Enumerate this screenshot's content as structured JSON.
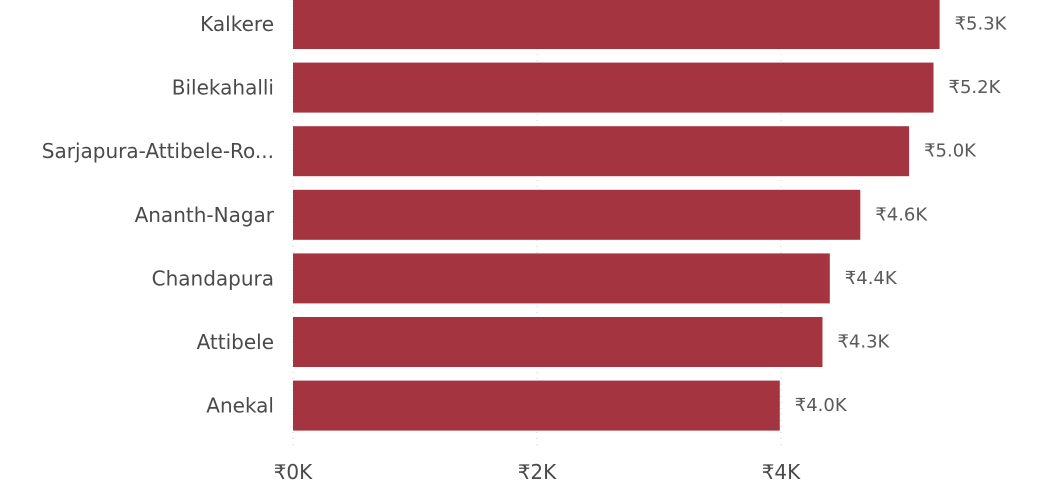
{
  "chart_data": {
    "type": "bar",
    "orientation": "horizontal",
    "categories": [
      "Kalkere",
      "Bilekahalli",
      "Sarjapura-Attibele-Ro...",
      "Ananth-Nagar",
      "Chandapura",
      "Attibele",
      "Anekal"
    ],
    "values": [
      5300,
      5250,
      5050,
      4650,
      4400,
      4340,
      3990
    ],
    "data_labels": [
      "₹5.3K",
      "₹5.2K",
      "₹5.0K",
      "₹4.6K",
      "₹4.4K",
      "₹4.3K",
      "₹4.0K"
    ],
    "x_ticks": [
      {
        "value": 0,
        "label": "₹0K"
      },
      {
        "value": 2000,
        "label": "₹2K"
      },
      {
        "value": 4000,
        "label": "₹4K"
      }
    ],
    "xlim": [
      0,
      5300
    ],
    "grid": "vertical dotted",
    "title": "",
    "xlabel": "",
    "ylabel": ""
  },
  "colors": {
    "bar": "#a4343f",
    "text": "#4a4a4a",
    "label": "#5a5a5a",
    "grid": "#cfcfcf"
  }
}
